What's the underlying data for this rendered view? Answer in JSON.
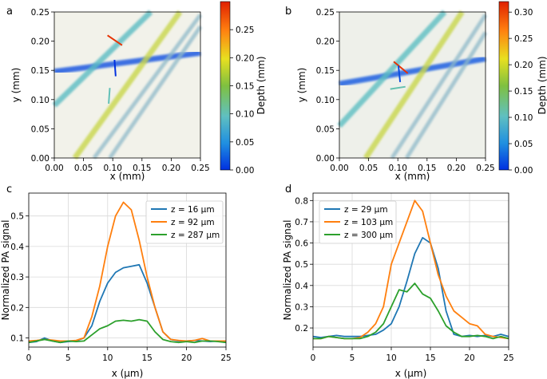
{
  "chart_data": [
    {
      "panel_label": "a",
      "type": "heatmap",
      "xlabel": "x (mm)",
      "ylabel": "y (mm)",
      "xlim": [
        0.0,
        0.25
      ],
      "ylim": [
        0.0,
        0.25
      ],
      "xticks": [
        "0.00",
        "0.05",
        "0.10",
        "0.15",
        "0.20",
        "0.25"
      ],
      "yticks": [
        "0.00",
        "0.05",
        "0.10",
        "0.15",
        "0.20",
        "0.25"
      ],
      "colorbar": {
        "label": "Depth (mm)",
        "range": [
          0.0,
          0.3
        ],
        "ticks": [
          "0.00",
          "0.05",
          "0.10",
          "0.15",
          "0.20",
          "0.25"
        ]
      },
      "vessels": [
        {
          "x": [
            0.0,
            0.25
          ],
          "y": [
            0.148,
            0.18
          ],
          "depth": 0.016
        },
        {
          "x": [
            0.0,
            0.165
          ],
          "y": [
            0.09,
            0.25
          ],
          "depth": 0.092
        },
        {
          "x": [
            0.035,
            0.215
          ],
          "y": [
            0.0,
            0.25
          ],
          "depth": 0.18
        },
        {
          "x": [
            0.068,
            0.25
          ],
          "y": [
            0.0,
            0.245
          ],
          "depth": 0.287
        },
        {
          "x": [
            0.095,
            0.25
          ],
          "y": [
            0.0,
            0.225
          ],
          "depth": 0.287
        }
      ],
      "markers": [
        {
          "x": [
            0.091,
            0.116
          ],
          "y": [
            0.21,
            0.193
          ],
          "depth": 0.29
        },
        {
          "x": [
            0.103,
            0.105
          ],
          "y": [
            0.168,
            0.14
          ],
          "depth": 0.0
        },
        {
          "x": [
            0.095,
            0.093
          ],
          "y": [
            0.12,
            0.093
          ],
          "depth": 0.1
        }
      ]
    },
    {
      "panel_label": "b",
      "type": "heatmap",
      "xlabel": "x (mm)",
      "ylabel": "y (mm)",
      "xlim": [
        0.0,
        0.25
      ],
      "ylim": [
        0.0,
        0.25
      ],
      "xticks": [
        "0.00",
        "0.05",
        "0.10",
        "0.15",
        "0.20",
        "0.25"
      ],
      "yticks": [
        "0.00",
        "0.05",
        "0.10",
        "0.15",
        "0.20",
        "0.25"
      ],
      "colorbar": {
        "label": "Depth (mm)",
        "range": [
          0.0,
          0.32
        ],
        "ticks": [
          "0.00",
          "0.05",
          "0.10",
          "0.15",
          "0.20",
          "0.25",
          "0.30"
        ]
      },
      "vessels": [
        {
          "x": [
            0.0,
            0.25
          ],
          "y": [
            0.127,
            0.17
          ],
          "depth": 0.02
        },
        {
          "x": [
            0.0,
            0.18
          ],
          "y": [
            0.055,
            0.25
          ],
          "depth": 0.1
        },
        {
          "x": [
            0.045,
            0.21
          ],
          "y": [
            0.0,
            0.25
          ],
          "depth": 0.19
        },
        {
          "x": [
            0.09,
            0.25
          ],
          "y": [
            0.0,
            0.245
          ],
          "depth": 0.27
        },
        {
          "x": [
            0.115,
            0.25
          ],
          "y": [
            0.0,
            0.215
          ],
          "depth": 0.28
        }
      ],
      "markers": [
        {
          "x": [
            0.093,
            0.117
          ],
          "y": [
            0.165,
            0.145
          ],
          "depth": 0.31
        },
        {
          "x": [
            0.101,
            0.104
          ],
          "y": [
            0.158,
            0.13
          ],
          "depth": 0.015
        },
        {
          "x": [
            0.087,
            0.113
          ],
          "y": [
            0.118,
            0.122
          ],
          "depth": 0.11
        }
      ]
    },
    {
      "panel_label": "c",
      "type": "line",
      "xlabel": "x (μm)",
      "ylabel": "Normalized PA signal",
      "xlim": [
        0,
        25
      ],
      "ylim": [
        0.07,
        0.575
      ],
      "xticks": [
        0,
        5,
        10,
        15,
        20,
        25
      ],
      "yticks": [
        0.1,
        0.2,
        0.3,
        0.4,
        0.5
      ],
      "x": [
        0,
        1,
        2,
        3,
        4,
        5,
        6,
        7,
        8,
        9,
        10,
        11,
        12,
        13,
        14,
        15,
        16,
        17,
        18,
        19,
        20,
        21,
        22,
        23,
        24,
        25
      ],
      "series": [
        {
          "name": "z = 16 μm",
          "color": "#1f77b4",
          "values": [
            0.085,
            0.088,
            0.1,
            0.09,
            0.085,
            0.088,
            0.09,
            0.1,
            0.14,
            0.22,
            0.28,
            0.315,
            0.33,
            0.335,
            0.34,
            0.28,
            0.2,
            0.12,
            0.095,
            0.09,
            0.09,
            0.092,
            0.09,
            0.088,
            0.09,
            0.085
          ]
        },
        {
          "name": "z = 92 μm",
          "color": "#ff7f0e",
          "values": [
            0.09,
            0.092,
            0.095,
            0.093,
            0.09,
            0.09,
            0.092,
            0.1,
            0.17,
            0.27,
            0.4,
            0.5,
            0.545,
            0.52,
            0.42,
            0.3,
            0.2,
            0.12,
            0.095,
            0.092,
            0.09,
            0.092,
            0.098,
            0.09,
            0.09,
            0.09
          ]
        },
        {
          "name": "z = 287 μm",
          "color": "#2ca02c",
          "values": [
            0.085,
            0.09,
            0.095,
            0.09,
            0.085,
            0.09,
            0.088,
            0.09,
            0.11,
            0.13,
            0.14,
            0.155,
            0.158,
            0.155,
            0.16,
            0.155,
            0.12,
            0.095,
            0.088,
            0.085,
            0.088,
            0.085,
            0.09,
            0.09,
            0.088,
            0.085
          ]
        }
      ]
    },
    {
      "panel_label": "d",
      "type": "line",
      "xlabel": "x (μm)",
      "ylabel": "Normalized PA signal",
      "xlim": [
        0,
        25
      ],
      "ylim": [
        0.11,
        0.835
      ],
      "xticks": [
        0,
        5,
        10,
        15,
        20,
        25
      ],
      "yticks": [
        0.2,
        0.3,
        0.4,
        0.5,
        0.6,
        0.7,
        0.8
      ],
      "x": [
        0,
        1,
        2,
        3,
        4,
        5,
        6,
        7,
        8,
        9,
        10,
        11,
        12,
        13,
        14,
        15,
        16,
        17,
        18,
        19,
        20,
        21,
        22,
        23,
        24,
        25
      ],
      "series": [
        {
          "name": "z = 29 μm",
          "color": "#1f77b4",
          "values": [
            0.16,
            0.155,
            0.16,
            0.165,
            0.16,
            0.16,
            0.16,
            0.165,
            0.17,
            0.19,
            0.22,
            0.3,
            0.42,
            0.55,
            0.625,
            0.6,
            0.48,
            0.28,
            0.17,
            0.16,
            0.165,
            0.16,
            0.165,
            0.16,
            0.17,
            0.16
          ]
        },
        {
          "name": "z = 103 μm",
          "color": "#ff7f0e",
          "values": [
            0.15,
            0.15,
            0.16,
            0.155,
            0.15,
            0.15,
            0.155,
            0.18,
            0.22,
            0.3,
            0.5,
            0.6,
            0.7,
            0.8,
            0.75,
            0.6,
            0.45,
            0.35,
            0.28,
            0.25,
            0.22,
            0.21,
            0.17,
            0.16,
            0.155,
            0.15
          ]
        },
        {
          "name": "z = 300 μm",
          "color": "#2ca02c",
          "values": [
            0.15,
            0.15,
            0.16,
            0.155,
            0.15,
            0.15,
            0.15,
            0.16,
            0.18,
            0.22,
            0.3,
            0.38,
            0.37,
            0.41,
            0.36,
            0.34,
            0.28,
            0.21,
            0.18,
            0.16,
            0.16,
            0.165,
            0.16,
            0.15,
            0.16,
            0.15
          ]
        }
      ]
    }
  ]
}
